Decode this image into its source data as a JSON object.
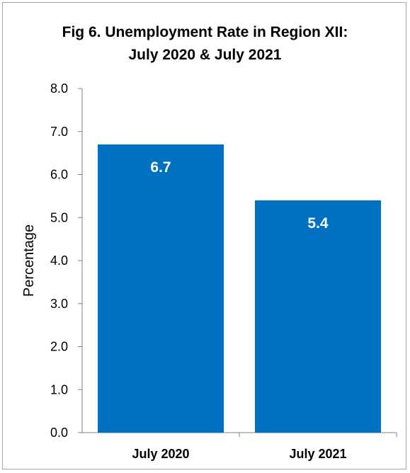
{
  "chart_data": {
    "type": "bar",
    "title_line1": "Fig 6. Unemployment Rate in Region XII:",
    "title_line2": "July 2020 & July 2021",
    "xlabel": "",
    "ylabel": "Percentage",
    "categories": [
      "July 2020",
      "July 2021"
    ],
    "values": [
      6.7,
      5.4
    ],
    "data_labels": [
      "6.7",
      "5.4"
    ],
    "ylim": [
      0,
      8
    ],
    "yticks": [
      "0.0",
      "1.0",
      "2.0",
      "3.0",
      "4.0",
      "5.0",
      "6.0",
      "7.0",
      "8.0"
    ],
    "grid": false,
    "legend": "none",
    "bar_color": "#0070c0",
    "label_color": "#ffffff"
  }
}
